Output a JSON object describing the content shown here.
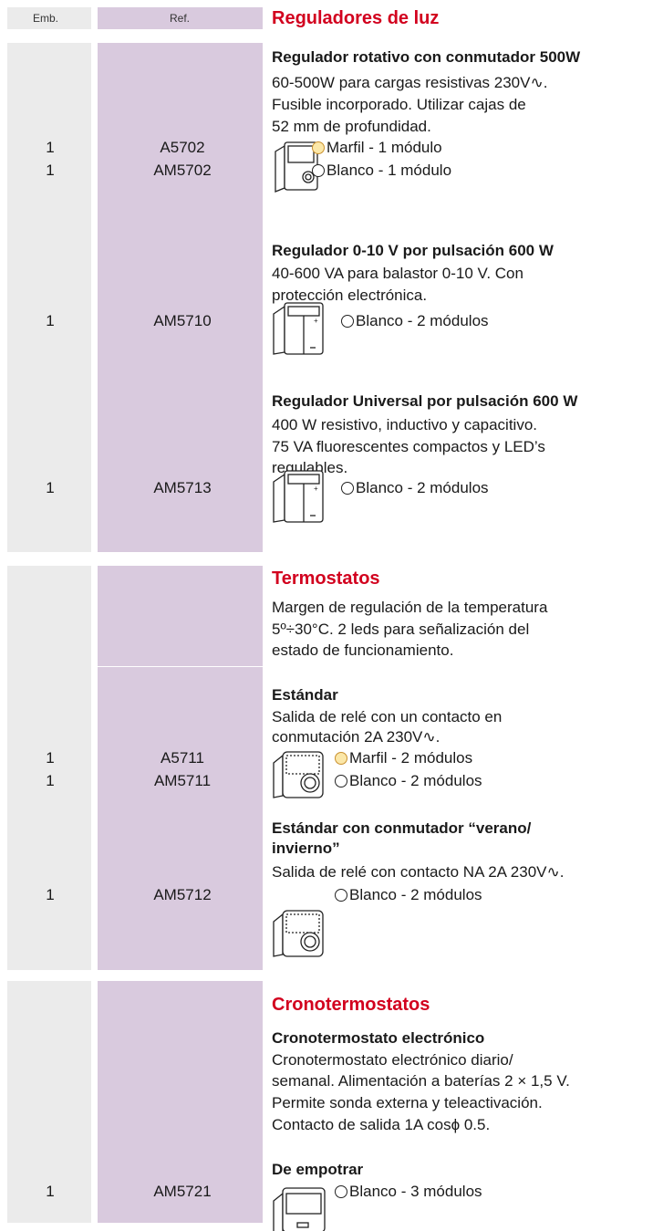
{
  "header": {
    "emb": "Emb.",
    "ref": "Ref."
  },
  "sections": [
    {
      "title": "Reguladores de luz",
      "items": [
        {
          "title": [
            "Regulador rotativo con conmutador 500W"
          ],
          "description": [
            "60-500W para cargas resistivas 230V∿.",
            "Fusible incorporado. Utilizar cajas de",
            "52 mm de profundidad."
          ],
          "options": [
            {
              "emb": 1,
              "ref": "A5702",
              "label": "Marfil - 1 módulo"
            },
            {
              "emb": 1,
              "ref": "AM5702",
              "label": "Blanco - 1 módulo"
            }
          ]
        },
        {
          "title": [
            "Regulador 0-10 V por pulsación 600 W"
          ],
          "description": [
            "40-600 VA para balastor 0-10 V. Con",
            "protección electrónica."
          ],
          "options": [
            {
              "emb": 1,
              "ref": "AM5710",
              "label": "Blanco - 2 módulos"
            }
          ]
        },
        {
          "title": [
            "Regulador Universal por pulsación 600 W"
          ],
          "description": [
            "400 W resistivo, inductivo y capacitivo.",
            "75 VA fluorescentes compactos y LED’s",
            "regulables."
          ],
          "options": [
            {
              "emb": 1,
              "ref": "AM5713",
              "label": "Blanco - 2 módulos"
            }
          ]
        }
      ]
    },
    {
      "title": "Termostatos",
      "description": [
        "Margen de regulación de la temperatura",
        "5º÷30°C. 2 leds para señalización del",
        "estado de funcionamiento."
      ],
      "items": [
        {
          "title": [
            "Estándar"
          ],
          "description": [
            "Salida de relé con un contacto en",
            "conmutación 2A 230V∿."
          ],
          "options": [
            {
              "emb": 1,
              "ref": "A5711",
              "label": "Marfil - 2 módulos"
            },
            {
              "emb": 1,
              "ref": "AM5711",
              "label": "Blanco - 2 módulos"
            }
          ]
        },
        {
          "title": [
            "Estándar con conmutador “verano/",
            "invierno”"
          ],
          "description": [
            "Salida de relé con contacto NA 2A 230V∿."
          ],
          "options": [
            {
              "emb": 1,
              "ref": "AM5712",
              "label": "Blanco - 2 módulos"
            }
          ]
        }
      ]
    },
    {
      "title": "Cronotermostatos",
      "items": [
        {
          "title": [
            "Cronotermostato electrónico"
          ],
          "description": [
            "Cronotermostato electrónico diario/",
            "semanal. Alimentación a baterías 2 × 1,5 V.",
            "Permite sonda externa y teleactivación.",
            "Contacto de salida 1A cosϕ 0.5."
          ]
        },
        {
          "title": [
            "De empotrar"
          ],
          "options": [
            {
              "emb": 1,
              "ref": "AM5721",
              "label": "Blanco - 3 módulos"
            }
          ]
        }
      ]
    }
  ]
}
